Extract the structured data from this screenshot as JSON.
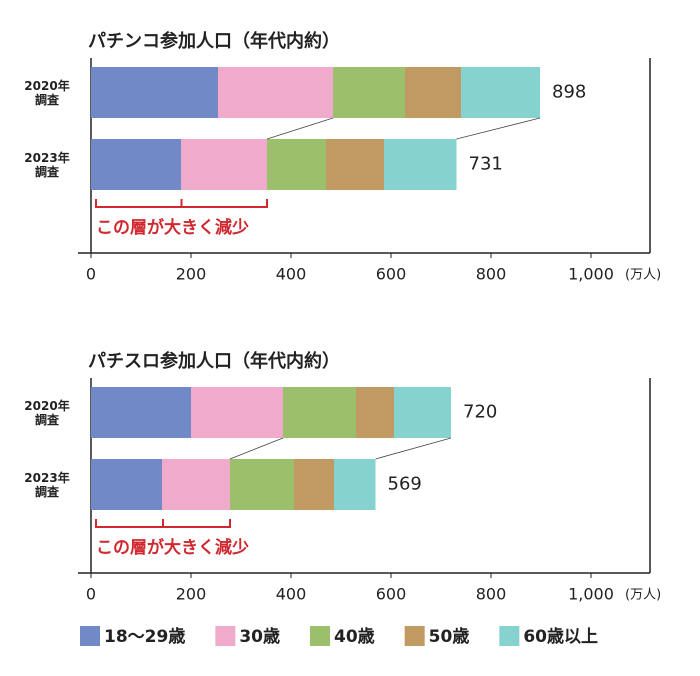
{
  "chart_data": [
    {
      "type": "stacked-barh",
      "title": "パチンコ参加人口（年代内約）",
      "categories": [
        "2020年\n調査",
        "2023年\n調査"
      ],
      "series": [
        {
          "name": "18〜29歳",
          "color": "#7189c6",
          "values": [
            254,
            180
          ]
        },
        {
          "name": "30歳",
          "color": "#f0aacb",
          "values": [
            230,
            172
          ]
        },
        {
          "name": "40歳",
          "color": "#9bbf6a",
          "values": [
            144,
            118
          ]
        },
        {
          "name": "50歳",
          "color": "#c19a63",
          "values": [
            112,
            116
          ]
        },
        {
          "name": "60歳以上",
          "color": "#86d2cf",
          "values": [
            158,
            145
          ]
        }
      ],
      "totals": [
        898,
        731
      ],
      "annotation": "この層が大きく減少",
      "unit": "(万人)",
      "xlim": [
        0,
        1118
      ],
      "xticks": [
        0,
        200,
        400,
        600,
        800,
        {
          "value": 1000,
          "label": "1,000"
        }
      ]
    },
    {
      "type": "stacked-barh",
      "title": "パチスロ参加人口（年代内約）",
      "categories": [
        "2020年\n調査",
        "2023年\n調査"
      ],
      "series": [
        {
          "name": "18〜29歳",
          "color": "#7189c6",
          "values": [
            200,
            142
          ]
        },
        {
          "name": "30歳",
          "color": "#f0aacb",
          "values": [
            184,
            136
          ]
        },
        {
          "name": "40歳",
          "color": "#9bbf6a",
          "values": [
            146,
            128
          ]
        },
        {
          "name": "50歳",
          "color": "#c19a63",
          "values": [
            76,
            80
          ]
        },
        {
          "name": "60歳以上",
          "color": "#86d2cf",
          "values": [
            114,
            83
          ]
        }
      ],
      "totals": [
        720,
        569
      ],
      "annotation": "この層が大きく減少",
      "unit": "(万人)",
      "xlim": [
        0,
        1118
      ],
      "xticks": [
        0,
        200,
        400,
        600,
        800,
        {
          "value": 1000,
          "label": "1,000"
        }
      ]
    }
  ]
}
